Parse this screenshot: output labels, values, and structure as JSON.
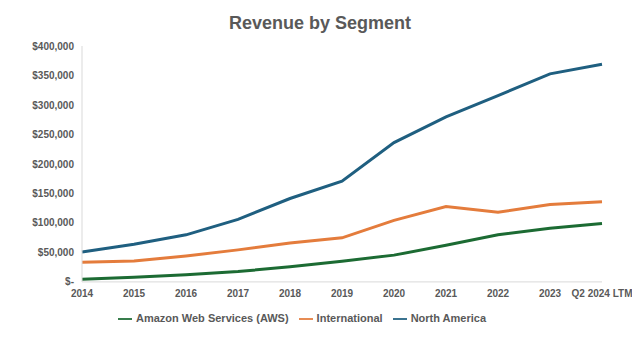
{
  "chart_data": {
    "type": "line",
    "title": "Revenue by Segment",
    "categories": [
      "2014",
      "2015",
      "2016",
      "2017",
      "2018",
      "2019",
      "2020",
      "2021",
      "2022",
      "2023",
      "Q2 2024 LTM"
    ],
    "series": [
      {
        "name": "North America",
        "color": "#1f5f80",
        "values": [
          50800,
          63700,
          79800,
          106100,
          141400,
          170800,
          236300,
          279800,
          315900,
          352800,
          369000
        ]
      },
      {
        "name": "International",
        "color": "#e47c3c",
        "values": [
          33500,
          35400,
          44000,
          54300,
          65900,
          74700,
          104400,
          127800,
          118000,
          131200,
          136000
        ]
      },
      {
        "name": "Amazon Web Services (AWS)",
        "color": "#1c6b33",
        "values": [
          4600,
          7900,
          12200,
          17500,
          25700,
          35000,
          45400,
          62200,
          80100,
          90800,
          99000
        ]
      }
    ],
    "ylim": [
      0,
      400000
    ],
    "yticks": [
      {
        "value": 0,
        "label": "$-"
      },
      {
        "value": 50000,
        "label": "$50,000"
      },
      {
        "value": 100000,
        "label": "$100,000"
      },
      {
        "value": 150000,
        "label": "$150,000"
      },
      {
        "value": 200000,
        "label": "$200,000"
      },
      {
        "value": 250000,
        "label": "$250,000"
      },
      {
        "value": 300000,
        "label": "$300,000"
      },
      {
        "value": 350000,
        "label": "$350,000"
      },
      {
        "value": 400000,
        "label": "$400,000"
      }
    ],
    "grid": false,
    "legend": "bottom"
  }
}
